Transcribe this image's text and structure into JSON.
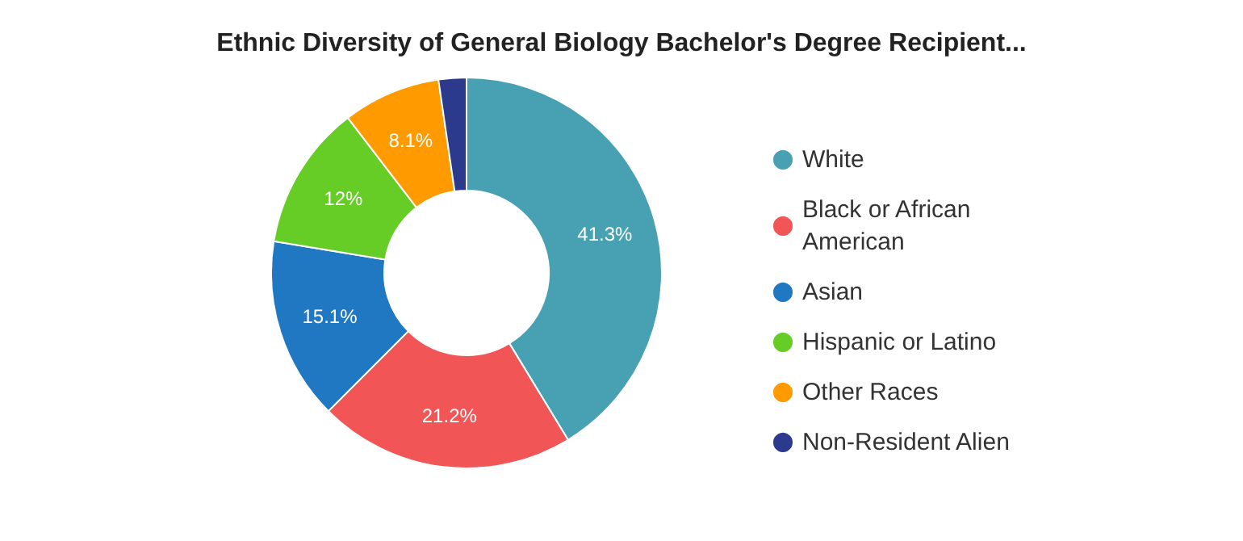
{
  "chart_data": {
    "type": "donut",
    "title": "Ethnic Diversity of General Biology Bachelor's Degree Recipient...",
    "categories": [
      "White",
      "Black or African American",
      "Asian",
      "Hispanic or Latino",
      "Other Races",
      "Non-Resident Alien"
    ],
    "values": [
      41.3,
      21.2,
      15.1,
      12,
      8.1,
      2.3
    ],
    "value_labels": [
      "41.3%",
      "21.2%",
      "15.1%",
      "12%",
      "8.1%",
      null
    ],
    "colors": [
      "#48a1b3",
      "#f25555",
      "#1f78c1",
      "#66cc26",
      "#ff9a00",
      "#2b3a8c"
    ],
    "legend": "right"
  }
}
